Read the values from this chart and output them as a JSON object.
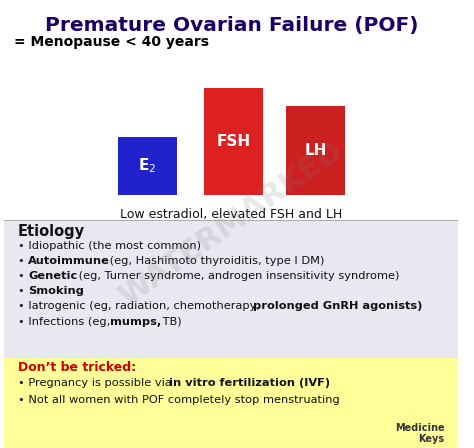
{
  "title": "Premature Ovarian Failure (POF)",
  "subtitle": "= Menopause < 40 years",
  "bar_caption": "Low estradiol, elevated FSH and LH",
  "etiology_title": "Etiology",
  "dont_trick_title": "Don’t be tricked:",
  "title_color": "#1a0066",
  "subtitle_color": "#000000",
  "etiology_bg": "#e8e8f0",
  "trick_bg": "#ffff99",
  "trick_title_color": "#cc0000",
  "body_text_color": "#111111",
  "bg_color": "#ffffff",
  "e2_color": "#2222cc",
  "fsh_color": "#dd2020",
  "lh_color": "#cc2020"
}
